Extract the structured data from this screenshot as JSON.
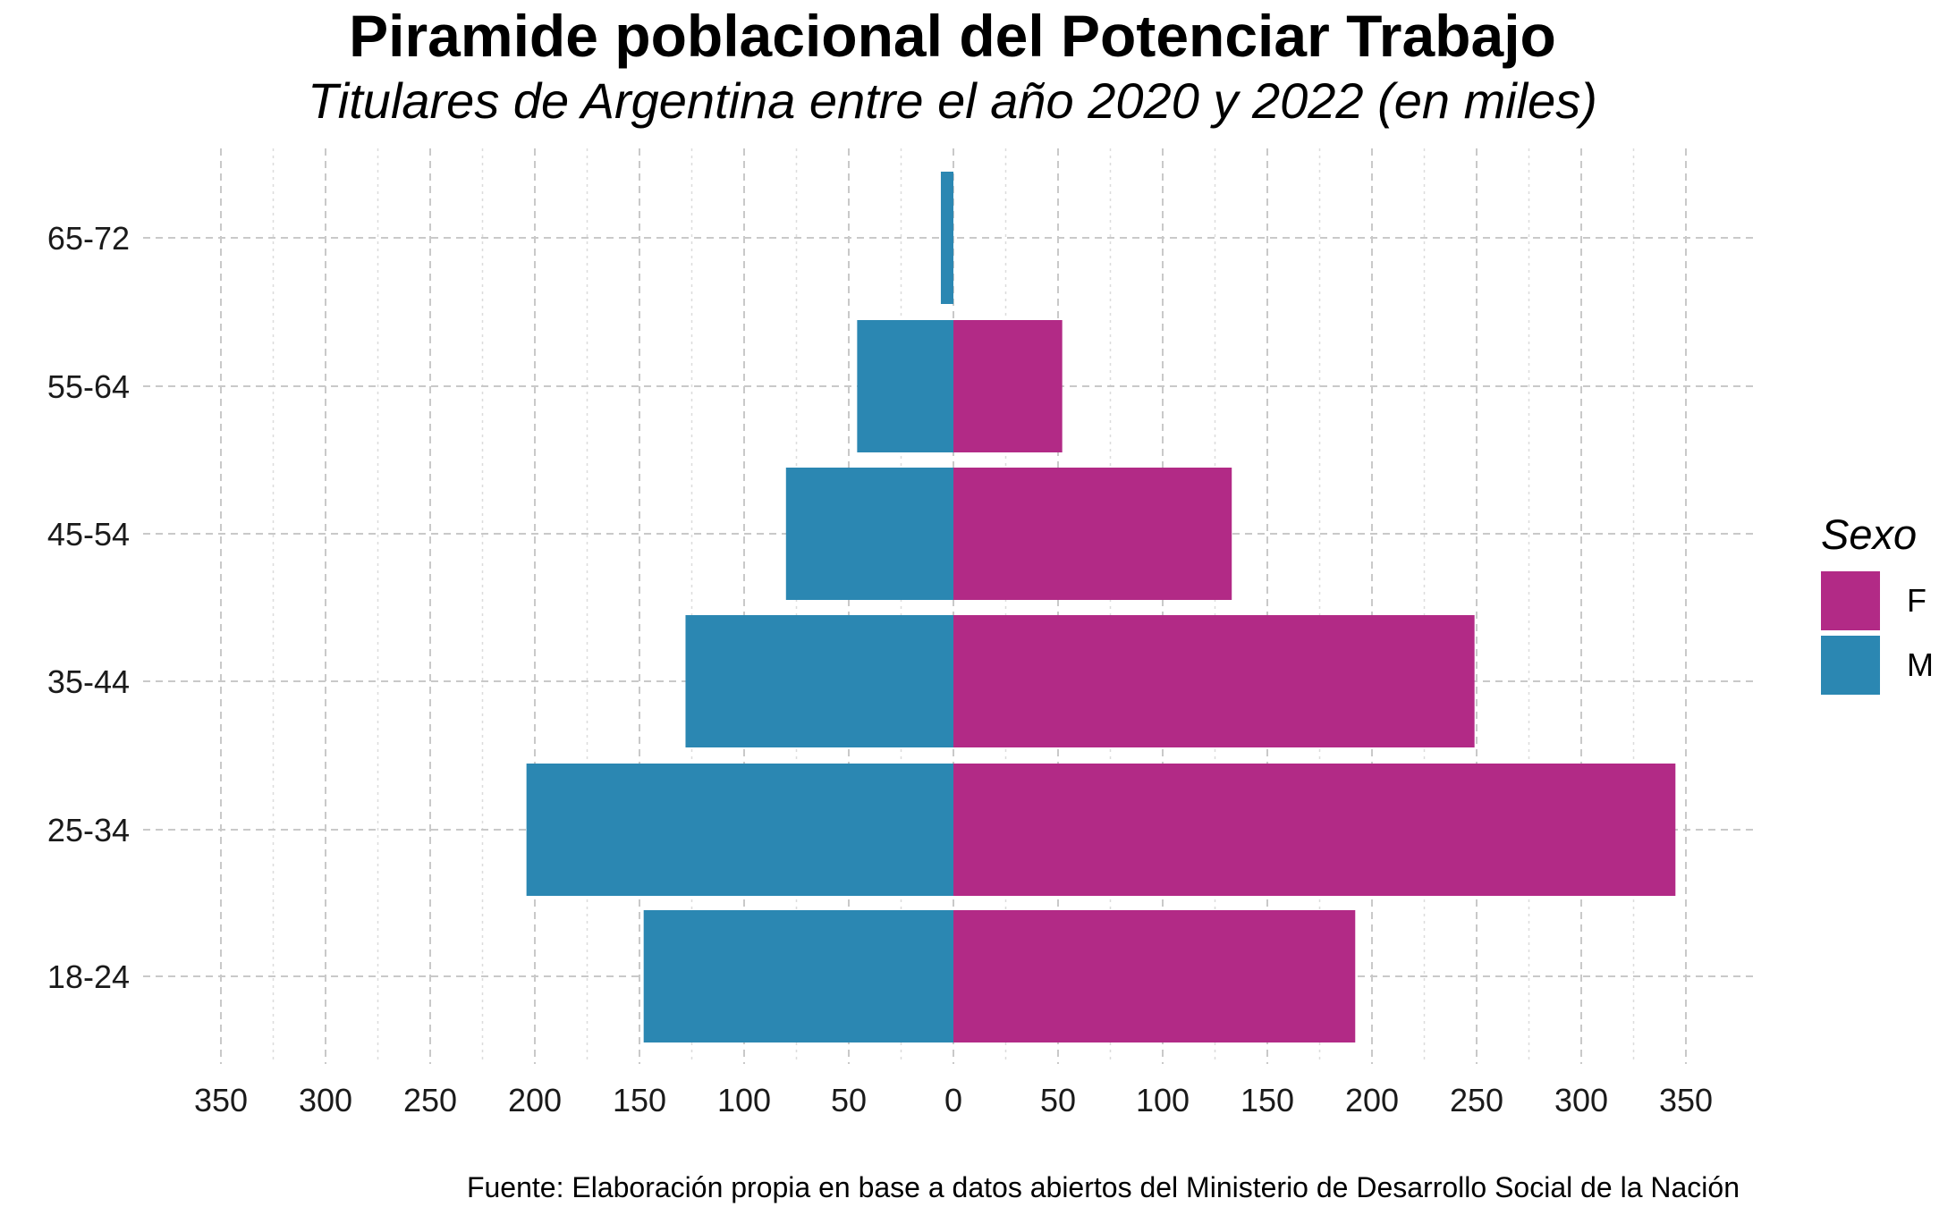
{
  "title": "Piramide poblacional del Potenciar Trabajo",
  "subtitle": "Titulares de Argentina entre el año 2020 y 2022 (en miles)",
  "caption": "Fuente: Elaboración propia en base a datos abiertos del Ministerio de Desarrollo Social de la Nación",
  "legend": {
    "title": "Sexo",
    "items": [
      {
        "label": "F",
        "color": "#B22A86"
      },
      {
        "label": "M",
        "color": "#2B87B2"
      }
    ]
  },
  "chart_data": {
    "type": "bar",
    "orientation": "horizontal-pyramid",
    "categories": [
      "18-24",
      "25-34",
      "35-44",
      "45-54",
      "55-64",
      "65-72"
    ],
    "series": [
      {
        "name": "F",
        "color": "#B22A86",
        "values": [
          192,
          345,
          249,
          133,
          52,
          0
        ]
      },
      {
        "name": "M",
        "color": "#2B87B2",
        "values": [
          148,
          204,
          128,
          80,
          46,
          6
        ]
      }
    ],
    "xlim": [
      -350,
      350
    ],
    "xticks": [
      -350,
      -300,
      -250,
      -200,
      -150,
      -100,
      -50,
      0,
      50,
      100,
      150,
      200,
      250,
      300,
      350
    ],
    "xtick_labels": [
      "350",
      "300",
      "250",
      "200",
      "150",
      "100",
      "50",
      "0",
      "50",
      "100",
      "150",
      "200",
      "250",
      "300",
      "350"
    ],
    "grid": true,
    "legend_position": "right"
  }
}
